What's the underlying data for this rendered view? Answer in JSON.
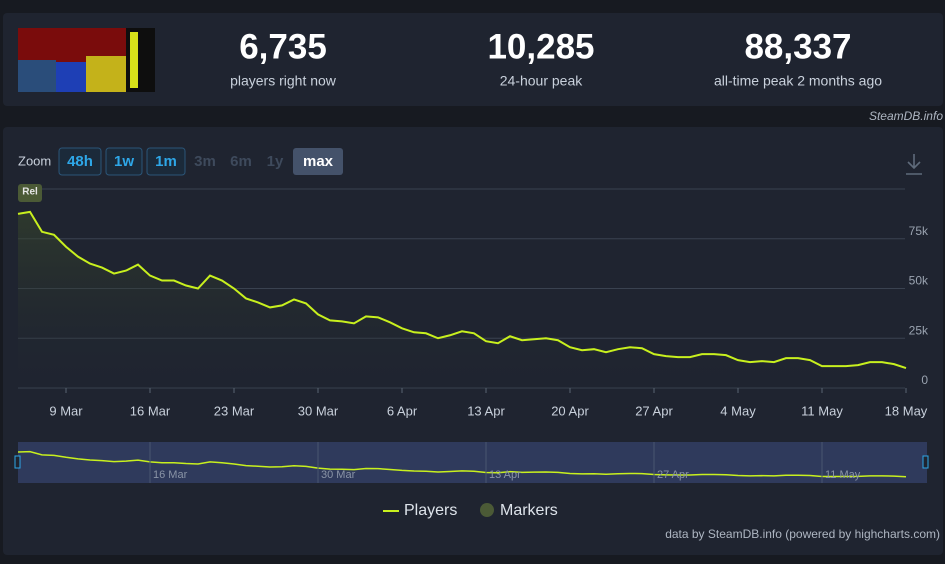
{
  "stats": [
    {
      "value": "6,735",
      "label": "players right now"
    },
    {
      "value": "10,285",
      "label": "24-hour peak"
    },
    {
      "value": "88,337",
      "label": "all-time peak 2 months ago"
    }
  ],
  "source": "SteamDB.info",
  "zoom": {
    "label": "Zoom",
    "options": [
      "48h",
      "1w",
      "1m",
      "3m",
      "6m",
      "1y",
      "max"
    ]
  },
  "credits": "data by SteamDB.info (powered by highcharts.com)",
  "chart_data": {
    "type": "line",
    "x": [
      "5 Mar",
      "6 Mar",
      "7 Mar",
      "8 Mar",
      "9 Mar",
      "10 Mar",
      "11 Mar",
      "12 Mar",
      "13 Mar",
      "14 Mar",
      "15 Mar",
      "16 Mar",
      "17 Mar",
      "18 Mar",
      "19 Mar",
      "20 Mar",
      "21 Mar",
      "22 Mar",
      "23 Mar",
      "24 Mar",
      "25 Mar",
      "26 Mar",
      "27 Mar",
      "28 Mar",
      "29 Mar",
      "30 Mar",
      "31 Mar",
      "1 Apr",
      "2 Apr",
      "3 Apr",
      "4 Apr",
      "5 Apr",
      "6 Apr",
      "7 Apr",
      "8 Apr",
      "9 Apr",
      "10 Apr",
      "11 Apr",
      "12 Apr",
      "13 Apr",
      "14 Apr",
      "15 Apr",
      "16 Apr",
      "17 Apr",
      "18 Apr",
      "19 Apr",
      "20 Apr",
      "21 Apr",
      "22 Apr",
      "23 Apr",
      "24 Apr",
      "25 Apr",
      "26 Apr",
      "27 Apr",
      "28 Apr",
      "29 Apr",
      "30 Apr",
      "1 May",
      "2 May",
      "3 May",
      "4 May",
      "5 May",
      "6 May",
      "7 May",
      "8 May",
      "9 May",
      "10 May",
      "11 May",
      "12 May",
      "13 May",
      "14 May",
      "15 May",
      "16 May",
      "17 May",
      "18 May"
    ],
    "series": [
      {
        "name": "Players",
        "color": "#c8f01e",
        "values": [
          87500,
          88500,
          78500,
          77000,
          71000,
          66000,
          62500,
          60500,
          57500,
          59000,
          62000,
          56500,
          54000,
          54000,
          51500,
          50000,
          56500,
          54000,
          50000,
          45000,
          43000,
          40500,
          41500,
          44500,
          42500,
          37000,
          34000,
          33500,
          32500,
          36000,
          35500,
          33000,
          30000,
          28000,
          27500,
          25000,
          26500,
          28500,
          27500,
          23500,
          22500,
          26000,
          24000,
          24500,
          25000,
          24000,
          20500,
          19000,
          19500,
          18000,
          19500,
          20500,
          20000,
          17000,
          16000,
          15500,
          15500,
          17000,
          17000,
          16500,
          14000,
          13000,
          13500,
          13000,
          15000,
          15000,
          14000,
          11000,
          11000,
          11000,
          11500,
          13000,
          13000,
          12000,
          10000
        ]
      }
    ],
    "markers": {
      "name": "Markers",
      "color": "#4b5a36"
    },
    "annotations": [
      {
        "x": "5 Mar",
        "text": "Rel"
      }
    ],
    "xticks": [
      "9 Mar",
      "16 Mar",
      "23 Mar",
      "30 Mar",
      "6 Apr",
      "13 Apr",
      "20 Apr",
      "27 Apr",
      "4 May",
      "11 May",
      "18 May"
    ],
    "ylim": [
      0,
      100000
    ],
    "yticks": [
      {
        "value": 0,
        "label": "0"
      },
      {
        "value": 25000,
        "label": "25k"
      },
      {
        "value": 50000,
        "label": "50k"
      },
      {
        "value": 75000,
        "label": "75k"
      },
      {
        "value": 100000,
        "label": ""
      }
    ],
    "grid": true
  }
}
